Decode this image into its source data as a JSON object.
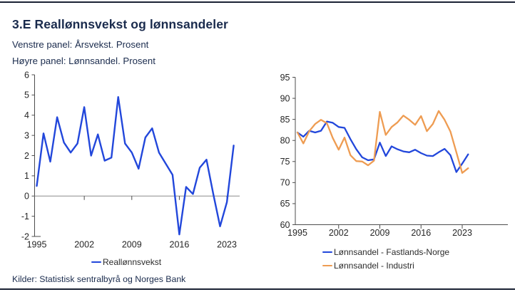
{
  "header": {
    "title": "3.E Reallønnsvekst og lønnsandeler",
    "subtitle_left": "Venstre panel: Årsvekst. Prosent",
    "subtitle_right": "Høyre panel: Lønnsandel. Prosent"
  },
  "footer": {
    "sources": "Kilder: Statistisk sentralbyrå og Norges Bank"
  },
  "colors": {
    "blue": "#2247db",
    "orange": "#ee9c52",
    "navy": "#1a2b4d",
    "border": "#1a2233",
    "axis": "#4d4d4d",
    "zero_line": "#8c8c8c",
    "tick_text": "#262626"
  },
  "chart_data": [
    {
      "type": "line",
      "panel": "left",
      "title": "",
      "xlabel": "",
      "ylabel": "Årsvekst. Prosent",
      "x": [
        1995,
        1996,
        1997,
        1998,
        1999,
        2000,
        2001,
        2002,
        2003,
        2004,
        2005,
        2006,
        2007,
        2008,
        2009,
        2010,
        2011,
        2012,
        2013,
        2014,
        2015,
        2016,
        2017,
        2018,
        2019,
        2020,
        2021,
        2022,
        2023,
        2024
      ],
      "series": [
        {
          "name": "Reallønnsvekst",
          "color_key": "blue",
          "values": [
            0.5,
            3.1,
            1.7,
            3.9,
            2.65,
            2.15,
            2.6,
            4.4,
            2.0,
            3.05,
            1.75,
            1.9,
            4.9,
            2.6,
            2.15,
            1.35,
            2.9,
            3.35,
            2.15,
            1.6,
            1.05,
            -1.9,
            0.45,
            0.1,
            1.4,
            1.8,
            0.1,
            -1.5,
            -0.3,
            2.5
          ]
        }
      ],
      "ylim": [
        -2,
        6
      ],
      "yticks": [
        6,
        5,
        4,
        3,
        2,
        1,
        0,
        -1,
        -2
      ],
      "xticks": [
        1995,
        2002,
        2009,
        2016,
        2023
      ],
      "xlim": [
        1995,
        2025
      ],
      "grid": false,
      "zero_line": true,
      "legend_position": "bottom"
    },
    {
      "type": "line",
      "panel": "right",
      "title": "",
      "xlabel": "",
      "ylabel": "Lønnsandel. Prosent",
      "x": [
        1995,
        1996,
        1997,
        1998,
        1999,
        2000,
        2001,
        2002,
        2003,
        2004,
        2005,
        2006,
        2007,
        2008,
        2009,
        2010,
        2011,
        2012,
        2013,
        2014,
        2015,
        2016,
        2017,
        2018,
        2019,
        2020,
        2021,
        2022,
        2023,
        2024
      ],
      "series": [
        {
          "name": "Lønnsandel - Fastlands-Norge",
          "color_key": "blue",
          "values": [
            81.9,
            80.9,
            82.3,
            81.9,
            82.3,
            84.5,
            84.2,
            83.2,
            83.0,
            80.3,
            77.9,
            76.0,
            75.3,
            75.5,
            79.5,
            76.3,
            78.6,
            77.9,
            77.4,
            77.2,
            77.8,
            77.0,
            76.4,
            76.3,
            77.2,
            78.0,
            76.5,
            72.5,
            74.5,
            76.7
          ]
        },
        {
          "name": "Lønnsandel - Industri",
          "color_key": "orange",
          "values": [
            81.9,
            79.3,
            82.2,
            83.9,
            84.9,
            84.1,
            80.6,
            77.8,
            80.7,
            76.5,
            75.1,
            75.0,
            74.1,
            75.2,
            86.8,
            81.3,
            83.2,
            84.3,
            85.9,
            84.9,
            83.7,
            85.8,
            82.2,
            83.9,
            87.0,
            84.9,
            82.1,
            77.2,
            72.3,
            73.4
          ]
        }
      ],
      "ylim": [
        60,
        95
      ],
      "yticks": [
        95,
        90,
        85,
        80,
        75,
        70,
        65,
        60
      ],
      "xticks": [
        1995,
        2002,
        2009,
        2016,
        2023
      ],
      "xlim": [
        1995,
        2031
      ],
      "grid": false,
      "zero_line": false,
      "legend_position": "bottom"
    }
  ]
}
